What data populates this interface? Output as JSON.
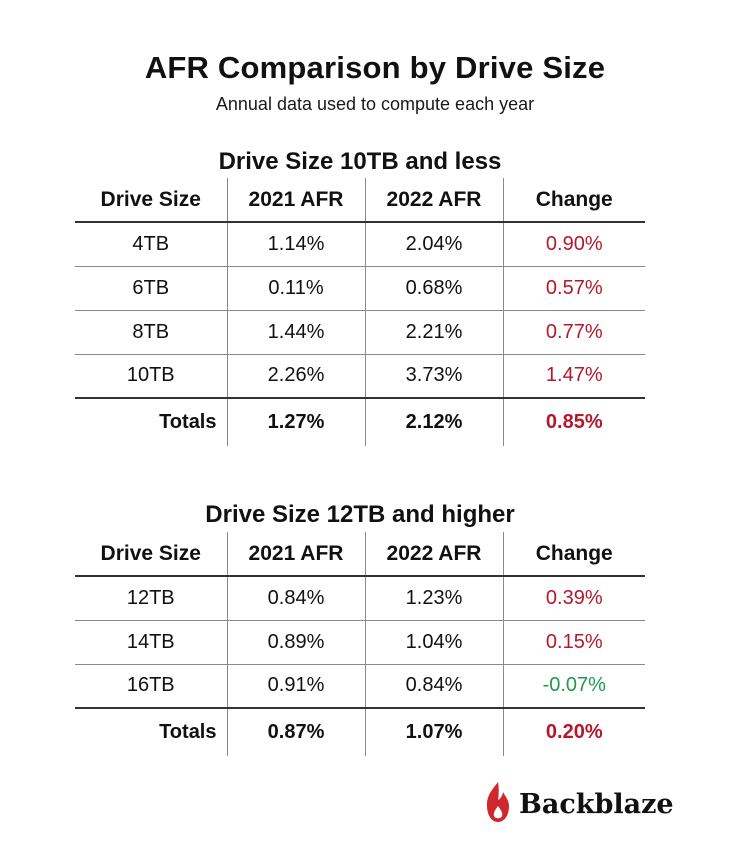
{
  "title": "AFR Comparison by Drive Size",
  "subtitle": "Annual data used to compute each year",
  "colors": {
    "increase": "#b3192b",
    "decrease": "#1f9a48",
    "logo": "#d0262e"
  },
  "brand": {
    "name": "Backblaze",
    "icon": "flame-logo-icon"
  },
  "chart_data": [
    {
      "type": "table",
      "title": "Drive Size 10TB and less",
      "columns": [
        "Drive Size",
        "2021 AFR",
        "2022 AFR",
        "Change"
      ],
      "rows": [
        [
          "4TB",
          "1.14%",
          "2.04%",
          "0.90%"
        ],
        [
          "6TB",
          "0.11%",
          "0.68%",
          "0.57%"
        ],
        [
          "8TB",
          "1.44%",
          "2.21%",
          "0.77%"
        ],
        [
          "10TB",
          "2.26%",
          "3.73%",
          "1.47%"
        ]
      ],
      "totals": [
        "Totals",
        "1.27%",
        "2.12%",
        "0.85%"
      ]
    },
    {
      "type": "table",
      "title": "Drive Size 12TB and higher",
      "columns": [
        "Drive Size",
        "2021 AFR",
        "2022 AFR",
        "Change"
      ],
      "rows": [
        [
          "12TB",
          "0.84%",
          "1.23%",
          "0.39%"
        ],
        [
          "14TB",
          "0.89%",
          "1.04%",
          "0.15%"
        ],
        [
          "16TB",
          "0.91%",
          "0.84%",
          "-0.07%"
        ]
      ],
      "totals": [
        "Totals",
        "0.87%",
        "1.07%",
        "0.20%"
      ]
    }
  ]
}
